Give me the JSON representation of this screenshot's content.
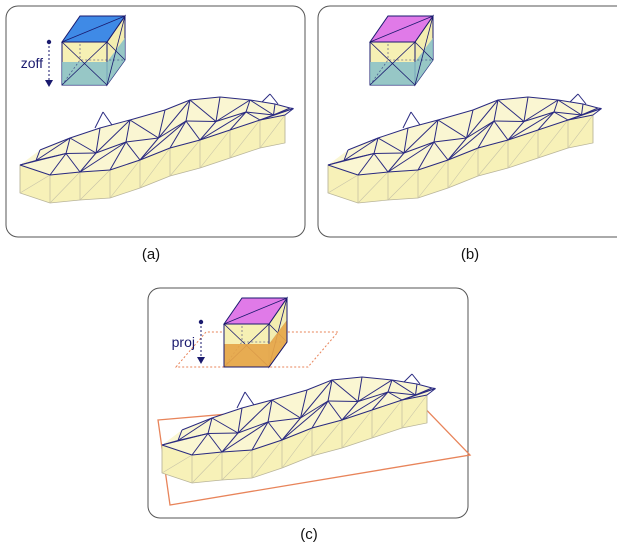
{
  "panels": [
    {
      "label": "(a)",
      "annotation": "zoff"
    },
    {
      "label": "(b)"
    },
    {
      "label": "(c)",
      "annotation": "proj"
    }
  ]
}
